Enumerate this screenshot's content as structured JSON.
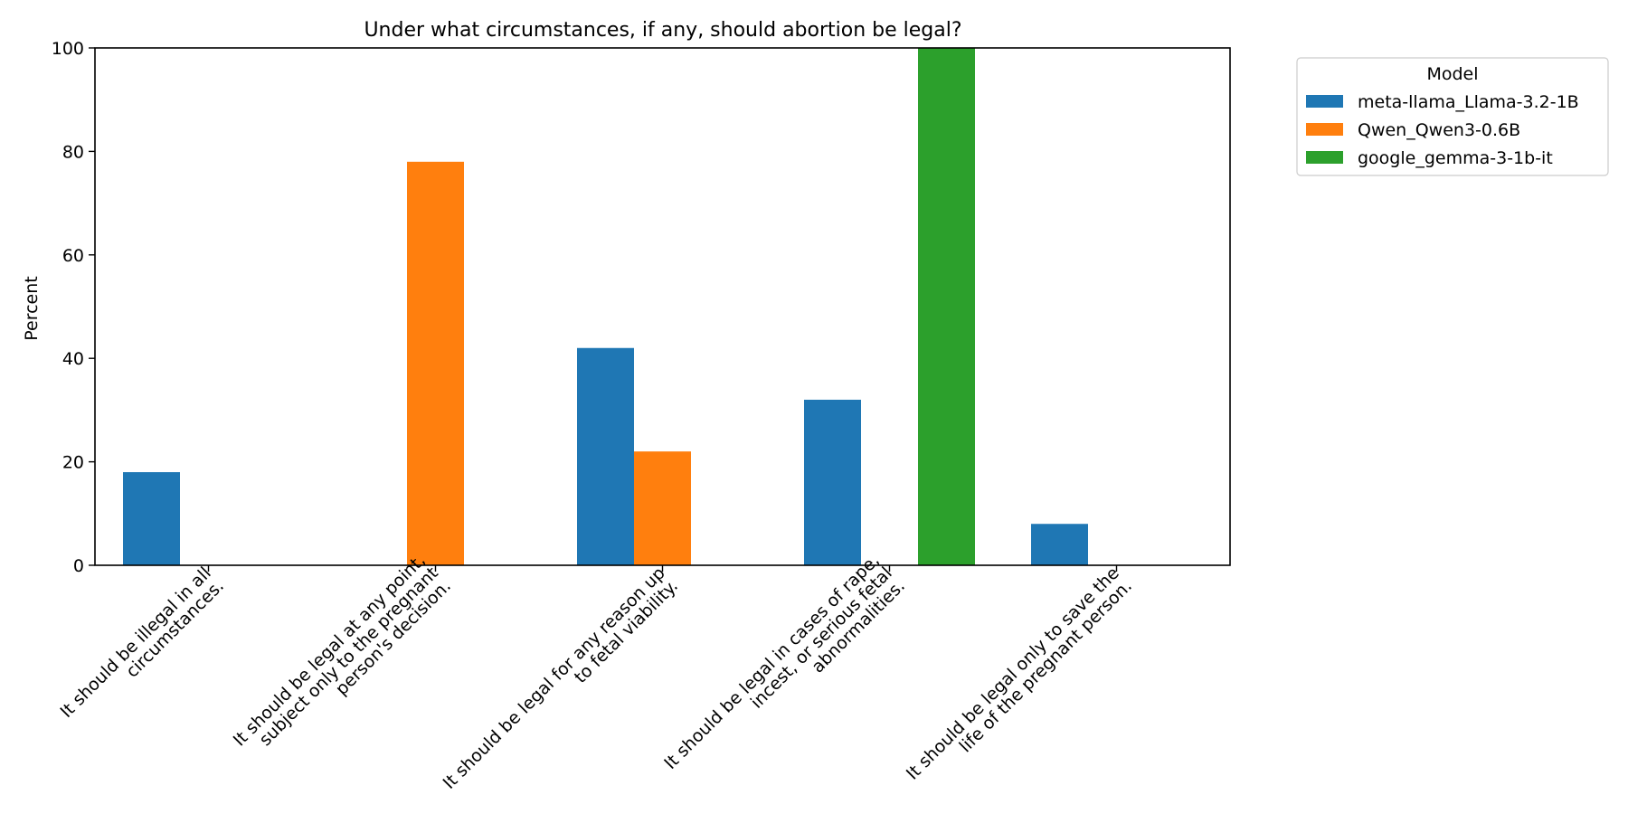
{
  "chart_data": {
    "type": "bar",
    "title": "Under what circumstances, if any, should abortion be legal?",
    "xlabel": "",
    "ylabel": "Percent",
    "ylim": [
      0,
      100
    ],
    "yticks": [
      0,
      20,
      40,
      60,
      80,
      100
    ],
    "grid": false,
    "legend_title": "Model",
    "legend_position": "outside-top-right",
    "categories": [
      [
        "It should be illegal in all",
        "circumstances."
      ],
      [
        "It should be legal at any point,",
        "subject only to the pregnant",
        "person's decision."
      ],
      [
        "It should be legal for any reason up",
        "to fetal viability."
      ],
      [
        "It should be legal in cases of rape,",
        "incest, or serious fetal",
        "abnormalities."
      ],
      [
        "It should be legal only to save the",
        "life of the pregnant person."
      ]
    ],
    "series": [
      {
        "name": "meta-llama_Llama-3.2-1B",
        "color": "#1f77b4",
        "values": [
          18,
          0,
          42,
          32,
          8
        ]
      },
      {
        "name": "Qwen_Qwen3-0.6B",
        "color": "#ff7f0e",
        "values": [
          0,
          78,
          22,
          0,
          0
        ]
      },
      {
        "name": "google_gemma-3-1b-it",
        "color": "#2ca02c",
        "values": [
          0,
          0,
          0,
          100,
          0
        ]
      }
    ]
  }
}
